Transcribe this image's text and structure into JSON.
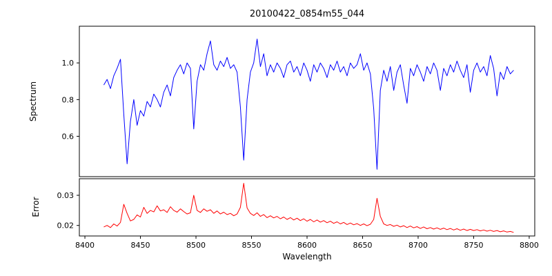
{
  "title": "20100422_0854m55_044",
  "colors": {
    "spectrum_line": "#0000ff",
    "error_line": "#ff0000",
    "axis": "#000000",
    "background": "#ffffff"
  },
  "chart_data": [
    {
      "type": "line",
      "name": "spectrum",
      "ylabel": "Spectrum",
      "color": "#0000ff",
      "x_start": 8417,
      "x_step": 3,
      "xlim": [
        8395,
        8805
      ],
      "ylim": [
        0.38,
        1.2
      ],
      "yticks": [
        0.6,
        0.8,
        1.0
      ],
      "ytick_labels": [
        "0.6",
        "0.8",
        "1.0"
      ],
      "grid": false,
      "legend": "none",
      "values": [
        0.88,
        0.91,
        0.86,
        0.93,
        0.97,
        1.02,
        0.72,
        0.45,
        0.68,
        0.8,
        0.66,
        0.74,
        0.71,
        0.79,
        0.76,
        0.83,
        0.8,
        0.76,
        0.84,
        0.88,
        0.82,
        0.92,
        0.96,
        0.99,
        0.94,
        1.0,
        0.97,
        0.64,
        0.9,
        0.99,
        0.96,
        1.05,
        1.12,
        0.99,
        0.96,
        1.01,
        0.98,
        1.03,
        0.97,
        0.99,
        0.95,
        0.76,
        0.47,
        0.8,
        0.95,
        1.0,
        1.13,
        0.98,
        1.05,
        0.93,
        0.99,
        0.95,
        1.0,
        0.97,
        0.92,
        0.99,
        1.01,
        0.95,
        0.98,
        0.93,
        1.0,
        0.96,
        0.9,
        0.99,
        0.95,
        1.0,
        0.97,
        0.92,
        0.99,
        0.96,
        1.01,
        0.95,
        0.98,
        0.93,
        1.0,
        0.97,
        0.99,
        1.05,
        0.96,
        1.0,
        0.94,
        0.75,
        0.42,
        0.85,
        0.96,
        0.9,
        0.98,
        0.85,
        0.95,
        0.99,
        0.88,
        0.78,
        0.97,
        0.93,
        0.99,
        0.95,
        0.9,
        0.98,
        0.94,
        1.0,
        0.96,
        0.85,
        0.97,
        0.93,
        0.99,
        0.95,
        1.01,
        0.96,
        0.92,
        0.99,
        0.84,
        0.96,
        1.0,
        0.95,
        0.98,
        0.93,
        1.04,
        0.97,
        0.82,
        0.95,
        0.91,
        0.98,
        0.94,
        0.96
      ]
    },
    {
      "type": "line",
      "name": "error",
      "ylabel": "Error",
      "xlabel": "Wavelength",
      "color": "#ff0000",
      "x_start": 8417,
      "x_step": 3,
      "xlim": [
        8395,
        8805
      ],
      "ylim": [
        0.0165,
        0.0355
      ],
      "yticks": [
        0.02,
        0.03
      ],
      "ytick_labels": [
        "0.02",
        "0.03"
      ],
      "xticks": [
        8400,
        8450,
        8500,
        8550,
        8600,
        8650,
        8700,
        8750,
        8800
      ],
      "xtick_labels": [
        "8400",
        "8450",
        "8500",
        "8550",
        "8600",
        "8650",
        "8700",
        "8750",
        "8800"
      ],
      "grid": false,
      "legend": "none",
      "values": [
        0.0195,
        0.02,
        0.0193,
        0.0205,
        0.0198,
        0.021,
        0.027,
        0.024,
        0.0215,
        0.022,
        0.0235,
        0.0228,
        0.026,
        0.024,
        0.025,
        0.0245,
        0.0265,
        0.0248,
        0.0252,
        0.0243,
        0.0262,
        0.025,
        0.0244,
        0.0255,
        0.0246,
        0.0238,
        0.0242,
        0.03,
        0.025,
        0.0243,
        0.0255,
        0.0247,
        0.0252,
        0.024,
        0.0248,
        0.0238,
        0.0244,
        0.0236,
        0.024,
        0.0232,
        0.0238,
        0.026,
        0.034,
        0.0258,
        0.024,
        0.0233,
        0.0242,
        0.023,
        0.0236,
        0.0226,
        0.0232,
        0.0225,
        0.023,
        0.0222,
        0.0228,
        0.022,
        0.0226,
        0.0218,
        0.0224,
        0.0216,
        0.0222,
        0.0214,
        0.022,
        0.0212,
        0.0218,
        0.0211,
        0.0216,
        0.0209,
        0.0214,
        0.0207,
        0.0212,
        0.0205,
        0.021,
        0.0203,
        0.0208,
        0.0202,
        0.0206,
        0.02,
        0.0205,
        0.0199,
        0.0204,
        0.022,
        0.029,
        0.023,
        0.0205,
        0.02,
        0.0203,
        0.0197,
        0.0201,
        0.0195,
        0.0199,
        0.0193,
        0.0198,
        0.0192,
        0.0196,
        0.019,
        0.0195,
        0.0189,
        0.0193,
        0.0188,
        0.0192,
        0.0187,
        0.0191,
        0.0186,
        0.019,
        0.0185,
        0.0189,
        0.0184,
        0.0188,
        0.0183,
        0.0187,
        0.0183,
        0.0186,
        0.0182,
        0.0185,
        0.0181,
        0.0184,
        0.018,
        0.0183,
        0.0179,
        0.0182,
        0.0178,
        0.018,
        0.0177
      ]
    }
  ]
}
